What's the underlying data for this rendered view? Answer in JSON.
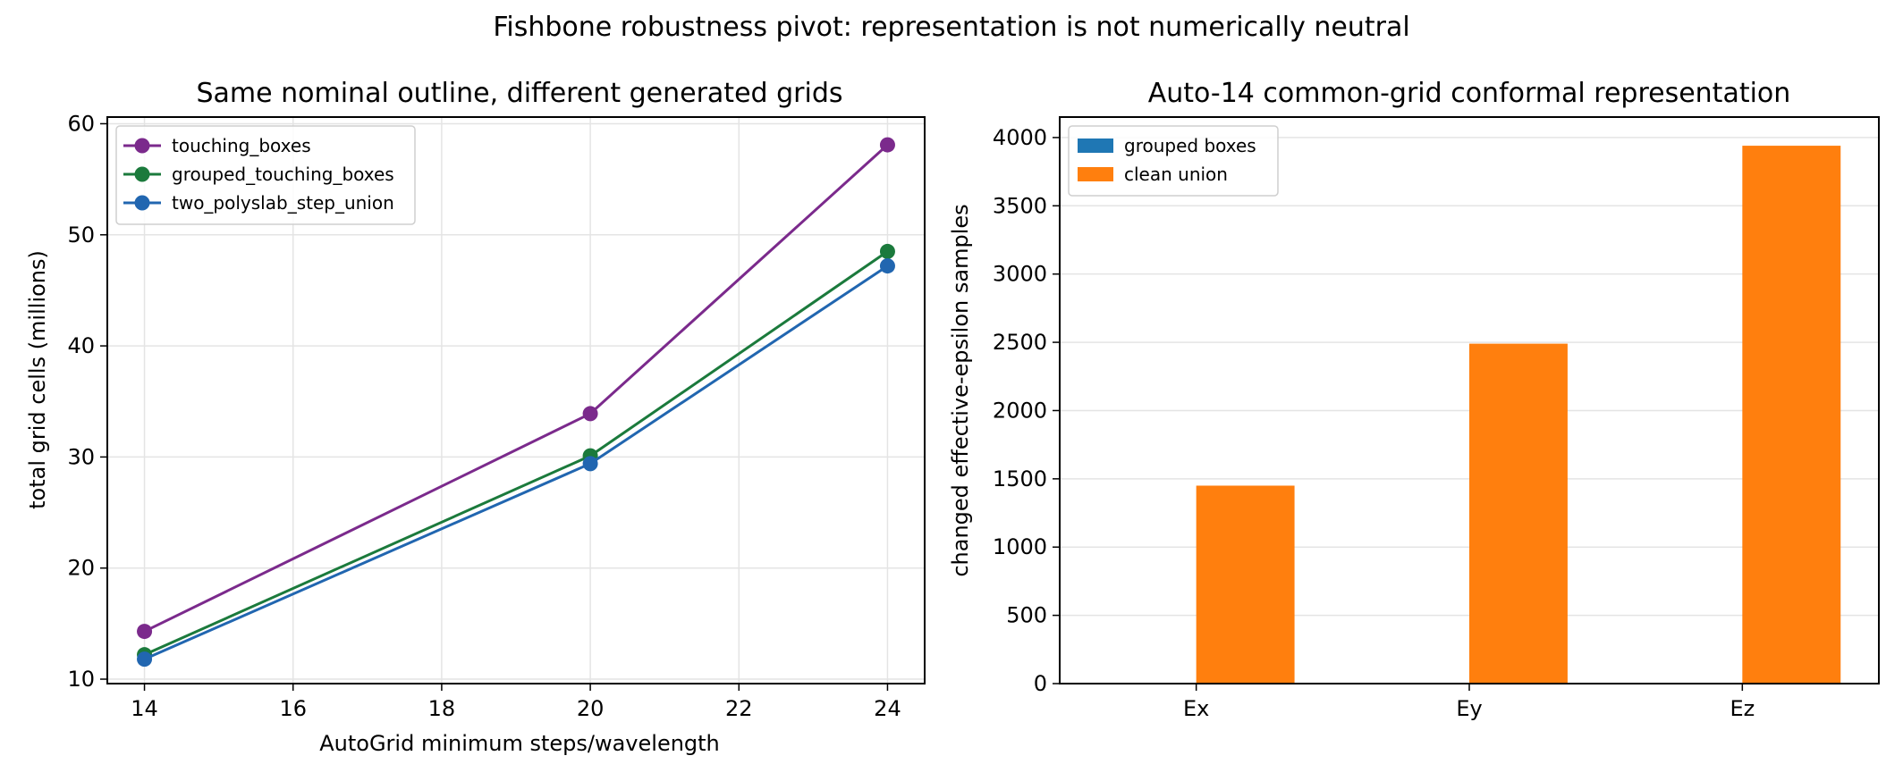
{
  "figure": {
    "suptitle": "Fishbone robustness pivot: representation is not numerically neutral"
  },
  "chart_data": [
    {
      "type": "line",
      "title": "Same nominal outline, different generated grids",
      "xlabel": "AutoGrid minimum steps/wavelength",
      "ylabel": "total grid cells (millions)",
      "x": [
        14,
        20,
        24
      ],
      "xlim": [
        13.5,
        24.5
      ],
      "ylim": [
        9.6,
        60.6
      ],
      "xticks": [
        14,
        16,
        18,
        20,
        22,
        24
      ],
      "yticks": [
        10,
        20,
        30,
        40,
        50,
        60
      ],
      "grid": true,
      "legend_position": "upper left",
      "series": [
        {
          "name": "touching_boxes",
          "values": [
            14.3,
            33.9,
            58.1
          ],
          "color": "#7b2a8c"
        },
        {
          "name": "grouped_touching_boxes",
          "values": [
            12.2,
            30.1,
            48.5
          ],
          "color": "#1b7a3c"
        },
        {
          "name": "two_polyslab_step_union",
          "values": [
            11.8,
            29.4,
            47.2
          ],
          "color": "#2166b0"
        }
      ]
    },
    {
      "type": "bar",
      "title": "Auto-14 common-grid conformal representation",
      "xlabel": "",
      "ylabel": "changed effective-epsilon samples",
      "categories": [
        "Ex",
        "Ey",
        "Ez"
      ],
      "ylim": [
        0,
        4150
      ],
      "yticks": [
        0,
        500,
        1000,
        1500,
        2000,
        2500,
        3000,
        3500,
        4000
      ],
      "grid": true,
      "legend_position": "upper left",
      "series": [
        {
          "name": "grouped boxes",
          "values": [
            0,
            0,
            0
          ],
          "color": "#1f77b4"
        },
        {
          "name": "clean union",
          "values": [
            1450,
            2490,
            3940
          ],
          "color": "#ff7f0e"
        }
      ]
    }
  ]
}
